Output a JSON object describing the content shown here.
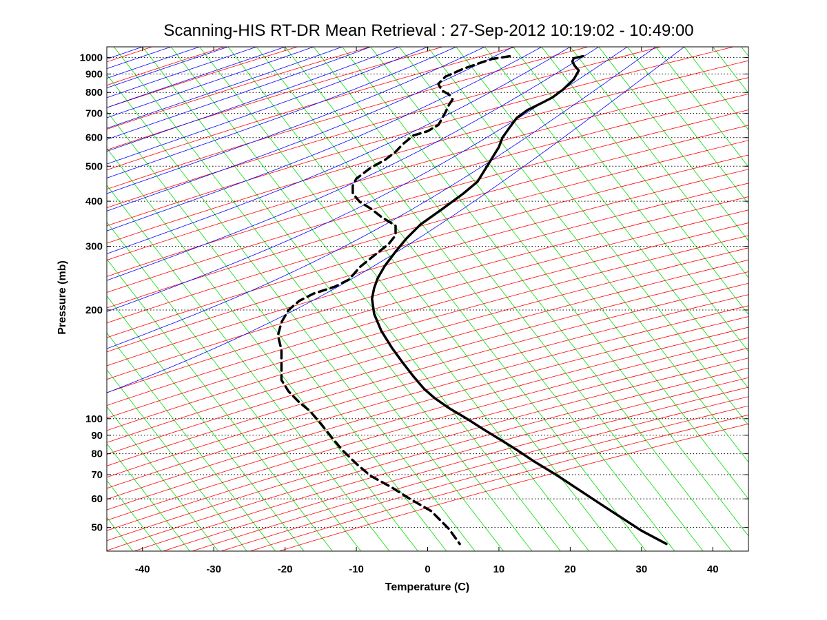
{
  "chart_data": {
    "type": "line",
    "title": "Scanning-HIS RT-DR Mean Retrieval : 27-Sep-2012 10:19:02 - 10:49:00",
    "xlabel": "Temperature (C)",
    "ylabel": "Pressure (mb)",
    "xlim": [
      -45,
      45
    ],
    "ylim": [
      1070,
      43
    ],
    "y_scale": "log",
    "y_inverted": true,
    "x_ticks": [
      "-40",
      "-30",
      "-20",
      "-10",
      "0",
      "10",
      "20",
      "30",
      "40"
    ],
    "y_ticks": [
      "50",
      "60",
      "70",
      "80",
      "90",
      "100",
      "200",
      "300",
      "400",
      "500",
      "600",
      "700",
      "800",
      "900",
      "1000"
    ],
    "grid": "horizontal dotted at pressure ticks",
    "background_lines": {
      "dry_adiabats_color": "#ff0000",
      "moist_adiabats_color": "#0000ff",
      "mixing_ratio_lines_color": "#00dd00"
    },
    "series": [
      {
        "style": "solid",
        "color": "#000000",
        "points": [
          [
            21.8,
            1008
          ],
          [
            20.5,
            995
          ],
          [
            20.3,
            975
          ],
          [
            20.6,
            950
          ],
          [
            21.2,
            920
          ],
          [
            20.5,
            870
          ],
          [
            19.0,
            815
          ],
          [
            17.5,
            775
          ],
          [
            16.0,
            748
          ],
          [
            14.0,
            715
          ],
          [
            12.5,
            680
          ],
          [
            11.5,
            640
          ],
          [
            10.5,
            600
          ],
          [
            10.0,
            565
          ],
          [
            9.0,
            525
          ],
          [
            8.0,
            488
          ],
          [
            7.0,
            453
          ],
          [
            5.0,
            420
          ],
          [
            2.0,
            380
          ],
          [
            -1.0,
            345
          ],
          [
            -3.0,
            315
          ],
          [
            -4.5,
            290
          ],
          [
            -6.0,
            265
          ],
          [
            -7.0,
            245
          ],
          [
            -7.5,
            230
          ],
          [
            -7.8,
            215
          ],
          [
            -7.5,
            195
          ],
          [
            -6.5,
            175
          ],
          [
            -5.0,
            157
          ],
          [
            -3.5,
            143
          ],
          [
            -2.0,
            131
          ],
          [
            -0.5,
            121
          ],
          [
            1.0,
            114
          ],
          [
            3.0,
            107
          ],
          [
            5.5,
            100
          ],
          [
            8.0,
            93
          ],
          [
            10.0,
            88
          ],
          [
            12.5,
            82
          ],
          [
            15.0,
            76
          ],
          [
            18.0,
            70
          ],
          [
            21.0,
            64
          ],
          [
            24.0,
            58.5
          ],
          [
            27.0,
            53.5
          ],
          [
            30.0,
            49
          ],
          [
            33.5,
            45
          ]
        ]
      },
      {
        "style": "dashed",
        "color": "#000000",
        "points": [
          [
            11.5,
            1008
          ],
          [
            9.0,
            990
          ],
          [
            7.5,
            968
          ],
          [
            5.0,
            930
          ],
          [
            2.5,
            885
          ],
          [
            1.5,
            845
          ],
          [
            2.0,
            810
          ],
          [
            3.0,
            790
          ],
          [
            3.5,
            765
          ],
          [
            3.0,
            740
          ],
          [
            2.5,
            705
          ],
          [
            1.5,
            650
          ],
          [
            0.0,
            625
          ],
          [
            -2.0,
            608
          ],
          [
            -3.5,
            575
          ],
          [
            -4.5,
            548
          ],
          [
            -6.0,
            520
          ],
          [
            -8.0,
            495
          ],
          [
            -9.0,
            478
          ],
          [
            -10.0,
            462
          ],
          [
            -10.5,
            442
          ],
          [
            -10.5,
            420
          ],
          [
            -9.5,
            398
          ],
          [
            -8.0,
            382
          ],
          [
            -6.5,
            362
          ],
          [
            -4.5,
            342
          ],
          [
            -4.5,
            322
          ],
          [
            -5.5,
            304
          ],
          [
            -7.5,
            283
          ],
          [
            -9.5,
            263
          ],
          [
            -11.0,
            243
          ],
          [
            -13.0,
            232
          ],
          [
            -16.0,
            222
          ],
          [
            -18.0,
            212
          ],
          [
            -19.5,
            200
          ],
          [
            -20.5,
            185
          ],
          [
            -21.0,
            170
          ],
          [
            -20.5,
            155
          ],
          [
            -20.5,
            140
          ],
          [
            -20.5,
            128
          ],
          [
            -19.5,
            119
          ],
          [
            -18.0,
            111
          ],
          [
            -16.5,
            105
          ],
          [
            -15.0,
            97
          ],
          [
            -13.5,
            89
          ],
          [
            -12.0,
            82
          ],
          [
            -10.0,
            75
          ],
          [
            -8.0,
            69.5
          ],
          [
            -5.0,
            64.5
          ],
          [
            -2.5,
            60
          ],
          [
            0.5,
            55.5
          ],
          [
            3.0,
            49.5
          ],
          [
            4.5,
            45
          ]
        ]
      }
    ]
  }
}
